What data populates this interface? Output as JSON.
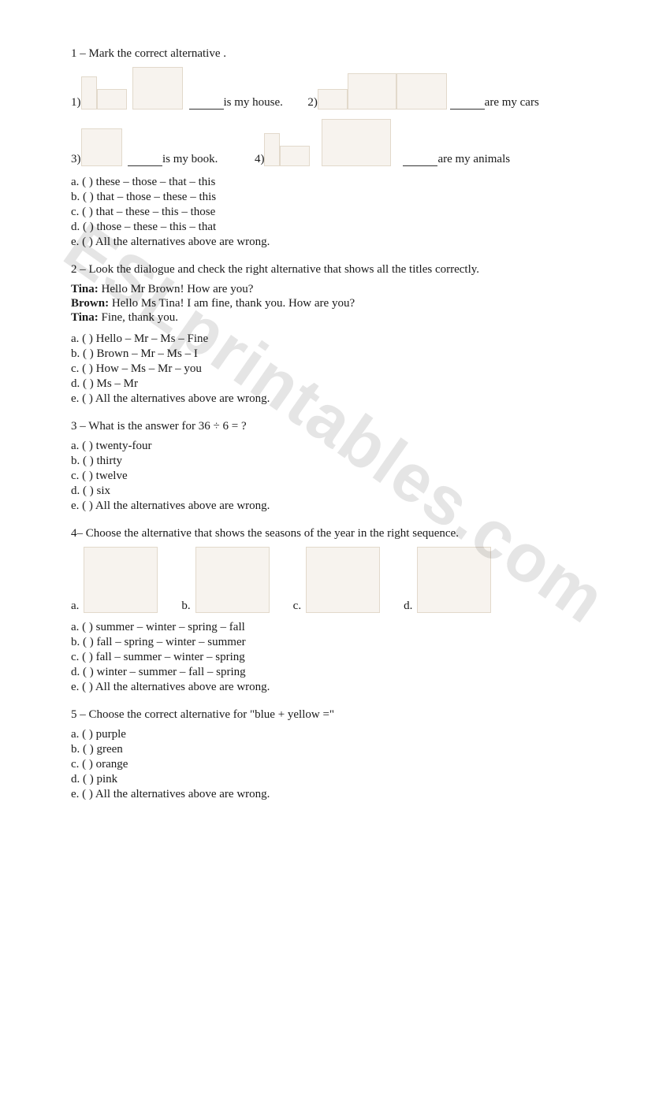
{
  "watermark": "ESLprintables.com",
  "q1": {
    "prompt": "1 – Mark the correct alternative .",
    "items": {
      "i1": {
        "prefix": "1)",
        "suffix": "is my house."
      },
      "i2": {
        "prefix": "2)",
        "suffix": "are my cars"
      },
      "i3": {
        "prefix": "3)",
        "suffix": "is my book."
      },
      "i4": {
        "prefix": "4)",
        "suffix": "are my animals"
      }
    },
    "options": {
      "a": "a. (   ) these – those – that – this",
      "b": "b. (   ) that – those – these – this",
      "c": "c. (   ) that – these – this – those",
      "d": "d. (   ) those – these – this – that",
      "e": "e. (   ) All the alternatives above are wrong."
    }
  },
  "q2": {
    "prompt": "2 – Look the dialogue and check the right alternative that shows all the titles correctly.",
    "dialogue": {
      "l1_speaker": "Tina:",
      "l1_text": " Hello Mr Brown! How are you?",
      "l2_speaker": "Brown:",
      "l2_text": " Hello Ms Tina! I am fine, thank you. How are you?",
      "l3_speaker": "Tina:",
      "l3_text": " Fine, thank you."
    },
    "options": {
      "a": "a. (   ) Hello – Mr – Ms – Fine",
      "b": "b. (   ) Brown – Mr – Ms – I",
      "c": "c. (   ) How – Ms – Mr – you",
      "d": "d. (   ) Ms – Mr",
      "e": "e. (   ) All the alternatives above are wrong."
    }
  },
  "q3": {
    "prompt": "3 – What is the answer for 36 ÷ 6 = ?",
    "options": {
      "a": "a. (   ) twenty-four",
      "b": "b. (   ) thirty",
      "c": "c. (   ) twelve",
      "d": "d. (   ) six",
      "e": "e. (   ) All the alternatives above are wrong."
    }
  },
  "q4": {
    "prompt": "4– Choose the alternative that shows the seasons of the year in the right sequence.",
    "labels": {
      "a": "a.",
      "b": "b.",
      "c": "c.",
      "d": "d."
    },
    "options": {
      "a": "a. (   ) summer – winter  – spring – fall",
      "b": "b. (   ) fall – spring  – winter – summer",
      "c": "c. (   ) fall – summer – winter – spring",
      "d": "d. (   ) winter – summer – fall – spring",
      "e": "e. (   ) All the alternatives above are wrong."
    }
  },
  "q5": {
    "prompt": "5 – Choose the correct alternative for \"blue + yellow =\"",
    "options": {
      "a": "a. (   ) purple",
      "b": "b. (   ) green",
      "c": "c. (   )  orange",
      "d": "d. (   ) pink",
      "e": "e. (   ) All the alternatives above are wrong."
    }
  },
  "icons": {
    "house": "house-clipart",
    "hand": "pointing-hand",
    "stick": "brown-stick",
    "car1": "blue-car",
    "car2": "grey-oldcar",
    "book": "open-book",
    "animals": "lion-cat-cartoon",
    "season_a": "house-fall-sketch",
    "season_b": "beach-summer",
    "season_c": "snowman-winter",
    "season_d": "bee-flower-spring"
  },
  "colors": {
    "text": "#1a1a1a",
    "background": "#ffffff",
    "watermark": "rgba(0,0,0,0.10)",
    "placeholder_bg": "#f7f3ee",
    "placeholder_border": "#e2d9cb"
  }
}
